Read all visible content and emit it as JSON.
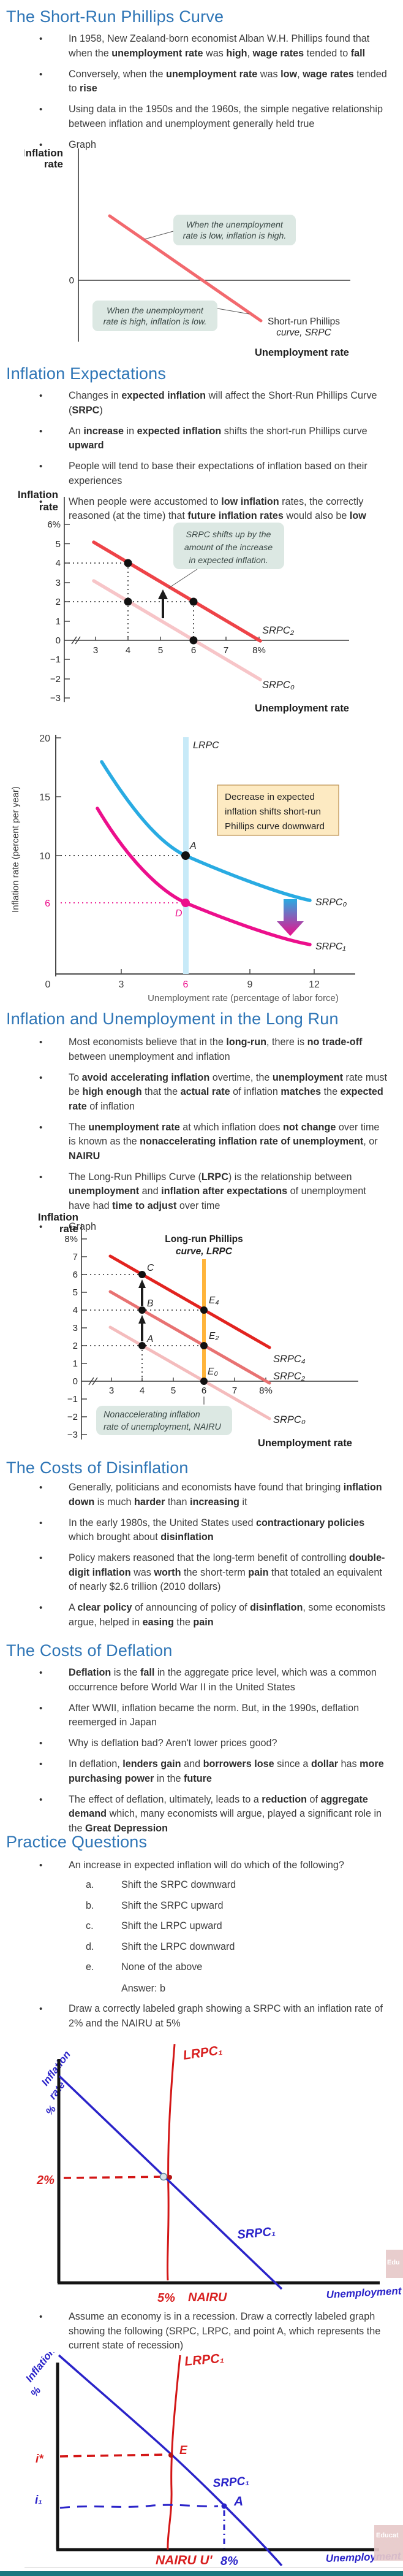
{
  "page": {
    "accent": "#2e75b6",
    "footer_bar_color": "#19787f",
    "background": "#ffffff"
  },
  "sections": {
    "srpc": {
      "title": "The Short-Run Phillips Curve",
      "bullets": [
        [
          {
            "t": "In 1958, New Zealand-born economist Alban W.H. Phillips found that when the "
          },
          {
            "t": "unemployment rate",
            "b": 1
          },
          {
            "t": " was "
          },
          {
            "t": "high",
            "b": 1
          },
          {
            "t": ", "
          },
          {
            "t": "wage rates",
            "b": 1
          },
          {
            "t": " tended to "
          },
          {
            "t": "fall",
            "b": 1
          }
        ],
        [
          {
            "t": "Conversely, when the "
          },
          {
            "t": "unemployment rate",
            "b": 1
          },
          {
            "t": " was "
          },
          {
            "t": "low",
            "b": 1
          },
          {
            "t": ", "
          },
          {
            "t": "wage rates",
            "b": 1
          },
          {
            "t": " tended to "
          },
          {
            "t": "rise",
            "b": 1
          }
        ],
        [
          {
            "t": "Using data in the 1950s and the 1960s, the simple negative relationship between inflation and unemployment generally held true"
          }
        ],
        [
          {
            "t": "Graph"
          }
        ]
      ]
    },
    "expectations": {
      "title": "Inflation Expectations",
      "bullets": [
        [
          {
            "t": "Changes in "
          },
          {
            "t": "expected inflation",
            "b": 1
          },
          {
            "t": " will affect the Short-Run Phillips Curve ("
          },
          {
            "t": "SRPC",
            "b": 1
          },
          {
            "t": ")"
          }
        ],
        [
          {
            "t": "An "
          },
          {
            "t": "increase",
            "b": 1
          },
          {
            "t": " in "
          },
          {
            "t": "expected inflation",
            "b": 1
          },
          {
            "t": " shifts the short-run Phillips curve "
          },
          {
            "t": "upward",
            "b": 1
          }
        ],
        [
          {
            "t": "People will tend to base their expectations of inflation based on their experiences"
          }
        ],
        [
          {
            "t": "When people were accustomed to "
          },
          {
            "t": "low inflation",
            "b": 1
          },
          {
            "t": " rates, the correctly reasoned (at the time) that "
          },
          {
            "t": "future inflation rates",
            "b": 1
          },
          {
            "t": " would also be "
          },
          {
            "t": "low",
            "b": 1
          }
        ]
      ]
    },
    "longrun": {
      "title": "Inflation and Unemployment in the Long Run",
      "bullets": [
        [
          {
            "t": "Most economists believe that in the "
          },
          {
            "t": "long-run",
            "b": 1
          },
          {
            "t": ", there is "
          },
          {
            "t": "no trade-off",
            "b": 1
          },
          {
            "t": " between unemployment and inflation"
          }
        ],
        [
          {
            "t": "To "
          },
          {
            "t": "avoid accelerating inflation",
            "b": 1
          },
          {
            "t": " overtime, the "
          },
          {
            "t": "unemployment",
            "b": 1
          },
          {
            "t": " rate must be "
          },
          {
            "t": "high enough",
            "b": 1
          },
          {
            "t": " that the "
          },
          {
            "t": "actual rate",
            "b": 1
          },
          {
            "t": " of inflation "
          },
          {
            "t": "matches",
            "b": 1
          },
          {
            "t": " the "
          },
          {
            "t": "expected rate",
            "b": 1
          },
          {
            "t": " of inflation"
          }
        ],
        [
          {
            "t": "The "
          },
          {
            "t": "unemployment rate",
            "b": 1
          },
          {
            "t": " at which inflation does "
          },
          {
            "t": "not change",
            "b": 1
          },
          {
            "t": " over time is known as the "
          },
          {
            "t": "nonaccelerating inflation rate of unemployment",
            "b": 1
          },
          {
            "t": ", or "
          },
          {
            "t": "NAIRU",
            "b": 1
          }
        ],
        [
          {
            "t": "The Long-Run Phillips Curve ("
          },
          {
            "t": "LRPC",
            "b": 1
          },
          {
            "t": ") is the relationship between "
          },
          {
            "t": "unemployment",
            "b": 1
          },
          {
            "t": " and "
          },
          {
            "t": "inflation after expectations",
            "b": 1
          },
          {
            "t": " of unemployment have had "
          },
          {
            "t": "time to adjust",
            "b": 1
          },
          {
            "t": " over time"
          }
        ],
        [
          {
            "t": "Graph"
          }
        ]
      ]
    },
    "disinflation": {
      "title": "The Costs of Disinflation",
      "bullets": [
        [
          {
            "t": "Generally, politicians and economists have found that bringing "
          },
          {
            "t": "inflation down",
            "b": 1
          },
          {
            "t": " is much "
          },
          {
            "t": "harder",
            "b": 1
          },
          {
            "t": " than "
          },
          {
            "t": "increasing",
            "b": 1
          },
          {
            "t": " it"
          }
        ],
        [
          {
            "t": "In the early 1980s, the United States used "
          },
          {
            "t": "contractionary policies",
            "b": 1
          },
          {
            "t": " which brought about "
          },
          {
            "t": "disinflation",
            "b": 1
          }
        ],
        [
          {
            "t": "Policy makers reasoned that the long-term benefit of controlling "
          },
          {
            "t": "double-digit inflation",
            "b": 1
          },
          {
            "t": " was "
          },
          {
            "t": "worth",
            "b": 1
          },
          {
            "t": " the short-term "
          },
          {
            "t": "pain",
            "b": 1
          },
          {
            "t": " that totaled an equivalent of nearly $2.6 trillion (2010 dollars)"
          }
        ],
        [
          {
            "t": "A "
          },
          {
            "t": "clear policy",
            "b": 1
          },
          {
            "t": " of announcing of policy of "
          },
          {
            "t": "disinflation",
            "b": 1
          },
          {
            "t": ", some economists argue, helped in "
          },
          {
            "t": "easing",
            "b": 1
          },
          {
            "t": " the "
          },
          {
            "t": "pain",
            "b": 1
          }
        ]
      ]
    },
    "deflation": {
      "title": "The Costs of Deflation",
      "bullets": [
        [
          {
            "t": "Deflation",
            "b": 1
          },
          {
            "t": " is the "
          },
          {
            "t": "fall",
            "b": 1
          },
          {
            "t": " in the aggregate price level, which was a common occurrence before World War II in the United States"
          }
        ],
        [
          {
            "t": "After WWII, inflation became the norm. But, in the 1990s, deflation reemerged in Japan"
          }
        ],
        [
          {
            "t": "Why is deflation bad? Aren't lower prices good?"
          }
        ],
        [
          {
            "t": "In deflation, "
          },
          {
            "t": "lenders gain",
            "b": 1
          },
          {
            "t": " and "
          },
          {
            "t": "borrowers lose",
            "b": 1
          },
          {
            "t": " since a "
          },
          {
            "t": "dollar",
            "b": 1
          },
          {
            "t": " has "
          },
          {
            "t": "more purchasing power",
            "b": 1
          },
          {
            "t": " in the "
          },
          {
            "t": "future",
            "b": 1
          }
        ],
        [
          {
            "t": "The effect of deflation, ultimately, leads to a "
          },
          {
            "t": "reduction",
            "b": 1
          },
          {
            "t": " of "
          },
          {
            "t": "aggregate demand",
            "b": 1
          },
          {
            "t": " which, many economists will argue, played a significant role in the "
          },
          {
            "t": "Great Depression",
            "b": 1
          }
        ]
      ]
    },
    "practice": {
      "title": "Practice Questions",
      "q1": [
        {
          "t": "An increase in expected inflation will do which of the following?"
        }
      ],
      "options": [
        {
          "letter": "a.",
          "text": "Shift the SRPC downward"
        },
        {
          "letter": "b.",
          "text": "Shift the SRPC upward"
        },
        {
          "letter": "c.",
          "text": "Shift the LRPC upward"
        },
        {
          "letter": "d.",
          "text": "Shift the LRPC downward"
        },
        {
          "letter": "e.",
          "text": "None of the above"
        }
      ],
      "answer": "Answer: b",
      "q2": [
        {
          "t": "Draw a correctly labeled graph showing a SRPC with an inflation rate of 2% and the NAIRU at 5%"
        }
      ],
      "q3": [
        {
          "t": "Assume an economy is in a recession. Draw a correctly labeled graph showing the following (SRPC, LRPC, and point A, which represents the current state of recession)"
        }
      ]
    }
  },
  "charts": {
    "fig1": {
      "type": "line",
      "name": "short-run phillips curve",
      "ylabel": [
        "Inflation",
        "rate"
      ],
      "zero": "0",
      "xlabel": "Unemployment rate",
      "curve_label": [
        "Short-run Phillips",
        "curve, SRPC"
      ],
      "callout_low": [
        "When the unemployment",
        "rate is low, inflation is high."
      ],
      "callout_high": [
        "When the unemployment",
        "rate is high, inflation is low."
      ],
      "line_color": "#f2696e"
    },
    "fig2": {
      "type": "line",
      "name": "srpc shifts up with expected inflation",
      "ylabel": [
        "Inflation",
        "rate"
      ],
      "xlabel": "Unemployment rate",
      "yticks": [
        "6%",
        "5",
        "4",
        "3",
        "2",
        "1",
        "0",
        "−1",
        "−2",
        "−3"
      ],
      "xticks": [
        "3",
        "4",
        "5",
        "6",
        "7",
        "8%"
      ],
      "callout": [
        "SRPC shifts up by the",
        "amount of the increase",
        "in expected inflation."
      ],
      "srpc2_label": "SRPC₂",
      "srpc0_label": "SRPC₀",
      "srpc0_points": [
        [
          3,
          3
        ],
        [
          8,
          -2
        ]
      ],
      "srpc2_points": [
        [
          3,
          5
        ],
        [
          8,
          0
        ]
      ],
      "dots": [
        [
          4,
          4
        ],
        [
          4,
          2
        ],
        [
          6,
          2
        ],
        [
          6,
          0
        ]
      ],
      "colors": {
        "srpc2": "#ee4348",
        "srpc0": "#f7c5c8"
      }
    },
    "fig3": {
      "type": "line",
      "name": "decrease in expected inflation",
      "ylabel": "Inflation rate (percent per year)",
      "xlabel": "Unemployment rate (percentage of labor force)",
      "yticks": [
        "20",
        "15",
        "10",
        "6"
      ],
      "xticks": [
        "0",
        "3",
        "6",
        "9",
        "12"
      ],
      "lrpc_label": "LRPC",
      "srpc0_label": "SRPC₀",
      "srpc1_label": "SRPC₁",
      "point_a": "A",
      "point_d": "D",
      "a_xy": [
        6,
        10
      ],
      "d_xy": [
        6,
        6
      ],
      "lrpc_x": 6,
      "box": [
        "Decrease in expected",
        "inflation shifts short-run",
        "Phillips curve downward"
      ],
      "colors": {
        "srpc0": "#29abe2",
        "srpc1": "#ec0f8c",
        "lrpc_band": "#c8eaf8",
        "box_bg": "#fdeac2"
      }
    },
    "fig4": {
      "type": "line",
      "name": "long-run phillips curve and NAIRU",
      "ylabel": [
        "Inflation",
        "rate"
      ],
      "title": [
        "Long-run Phillips",
        "curve, LRPC"
      ],
      "xlabel": "Unemployment rate",
      "yticks": [
        "8%",
        "7",
        "6",
        "5",
        "4",
        "3",
        "2",
        "1",
        "0",
        "−1",
        "−2",
        "−3"
      ],
      "xticks": [
        "3",
        "4",
        "5",
        "6",
        "7",
        "8%"
      ],
      "srpc4_label": "SRPC₄",
      "srpc2_label": "SRPC₂",
      "srpc0_label": "SRPC₀",
      "point_labels": {
        "C": "C",
        "B": "B",
        "A": "A",
        "E4": "E₄",
        "E2": "E₂",
        "E0": "E₀"
      },
      "points": {
        "C": [
          4,
          6
        ],
        "B": [
          4,
          4
        ],
        "A": [
          4,
          2
        ],
        "E4": [
          6,
          4
        ],
        "E2": [
          6,
          2
        ],
        "E0": [
          6,
          0
        ]
      },
      "srpc4_points": [
        [
          3,
          7
        ],
        [
          8,
          2
        ]
      ],
      "srpc2_points": [
        [
          3,
          5
        ],
        [
          8,
          0
        ]
      ],
      "srpc0_points": [
        [
          3,
          3
        ],
        [
          8,
          -2
        ]
      ],
      "nairu_x": 6,
      "callout": [
        "Nonaccelerating inflation",
        "rate of unemployment, NAIRU"
      ],
      "colors": {
        "srpc4": "#e2231f",
        "srpc2": "#e87272",
        "srpc0": "#f4bcbd",
        "lrpc": "#ffb43a"
      }
    },
    "handA": {
      "type": "line",
      "name": "hand drawn srpc 2% nairu 5%",
      "ylabel": [
        "Inflation",
        "rate",
        "%"
      ],
      "lrpc": "LRPC₁",
      "srpc": "SRPC₁",
      "inflation_tick": "2%",
      "nairu_tick": "5%",
      "nairu": "NAIRU",
      "xlabel": "Unemployment %",
      "watermark": "Edu"
    },
    "handB": {
      "type": "line",
      "name": "hand drawn recession graph",
      "ylabel": [
        "Inflation",
        "%"
      ],
      "lrpc": "LRPC₁",
      "srpc": "SRPC₁",
      "istar": "i*",
      "i1": "i₁",
      "e": "E",
      "a": "A",
      "nairu": "NAIRU U'",
      "u_tick": "8%",
      "xlabel": "Unemployment %",
      "watermark": "Educat"
    }
  }
}
